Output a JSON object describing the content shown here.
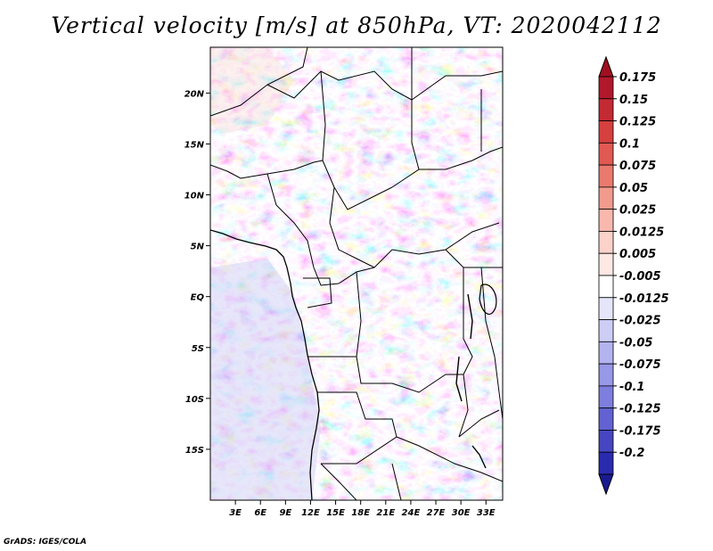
{
  "title": "Vertical velocity [m/s] at 850hPa, VT: 2020042112",
  "credit": "GrADS: IGES/COLA",
  "map": {
    "region": "Central Africa",
    "lat_range": [
      -20,
      24.5
    ],
    "lon_range": [
      0,
      35
    ],
    "lat_ticks": [
      {
        "value": 20,
        "label": "20N"
      },
      {
        "value": 15,
        "label": "15N"
      },
      {
        "value": 10,
        "label": "10N"
      },
      {
        "value": 5,
        "label": "5N"
      },
      {
        "value": 0,
        "label": "EQ"
      },
      {
        "value": -5,
        "label": "5S"
      },
      {
        "value": -10,
        "label": "10S"
      },
      {
        "value": -15,
        "label": "15S"
      }
    ],
    "lon_ticks": [
      {
        "value": 3,
        "label": "3E"
      },
      {
        "value": 6,
        "label": "6E"
      },
      {
        "value": 9,
        "label": "9E"
      },
      {
        "value": 12,
        "label": "12E"
      },
      {
        "value": 15,
        "label": "15E"
      },
      {
        "value": 18,
        "label": "18E"
      },
      {
        "value": 21,
        "label": "21E"
      },
      {
        "value": 24,
        "label": "24E"
      },
      {
        "value": 27,
        "label": "27E"
      },
      {
        "value": 30,
        "label": "30E"
      },
      {
        "value": 33,
        "label": "33E"
      }
    ]
  },
  "colorbar": {
    "levels": [
      {
        "label": "0.175",
        "color": "#b2182b"
      },
      {
        "label": "0.15",
        "color": "#c42a34"
      },
      {
        "label": "0.125",
        "color": "#d6403e"
      },
      {
        "label": "0.1",
        "color": "#e05a52"
      },
      {
        "label": "0.075",
        "color": "#ea7a6e"
      },
      {
        "label": "0.05",
        "color": "#f29a8e"
      },
      {
        "label": "0.025",
        "color": "#f8b8ae"
      },
      {
        "label": "0.0125",
        "color": "#fcd2ca"
      },
      {
        "label": "0.005",
        "color": "#fee8e4"
      },
      {
        "label": "-0.005",
        "color": "#ffffff"
      },
      {
        "label": "-0.0125",
        "color": "#e6e6fb"
      },
      {
        "label": "-0.025",
        "color": "#cdcdf6"
      },
      {
        "label": "-0.05",
        "color": "#b3b3f0"
      },
      {
        "label": "-0.075",
        "color": "#9898e8"
      },
      {
        "label": "-0.1",
        "color": "#7e7ede"
      },
      {
        "label": "-0.125",
        "color": "#6262d2"
      },
      {
        "label": "-0.175",
        "color": "#4646c2"
      },
      {
        "label": "-0.2",
        "color": "#2a2aae"
      }
    ],
    "top_arrow_color": "#a01020",
    "bottom_arrow_color": "#1a1a90"
  }
}
